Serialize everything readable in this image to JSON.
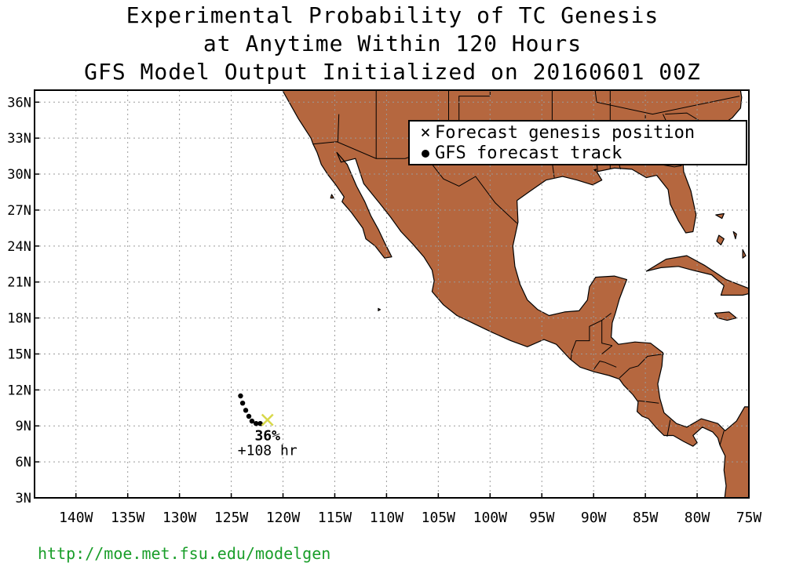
{
  "title": {
    "line1": "Experimental Probability of TC Genesis",
    "line2": "at Anytime Within 120 Hours",
    "line3": "GFS Model Output Initialized on 20160601 00Z"
  },
  "map": {
    "lon_range": [
      -144,
      -75
    ],
    "lat_range": [
      3,
      37
    ],
    "lat_ticks": [
      {
        "value": 3,
        "label": "3N"
      },
      {
        "value": 6,
        "label": "6N"
      },
      {
        "value": 9,
        "label": "9N"
      },
      {
        "value": 12,
        "label": "12N"
      },
      {
        "value": 15,
        "label": "15N"
      },
      {
        "value": 18,
        "label": "18N"
      },
      {
        "value": 21,
        "label": "21N"
      },
      {
        "value": 24,
        "label": "24N"
      },
      {
        "value": 27,
        "label": "27N"
      },
      {
        "value": 30,
        "label": "30N"
      },
      {
        "value": 33,
        "label": "33N"
      },
      {
        "value": 36,
        "label": "36N"
      }
    ],
    "lon_ticks": [
      {
        "value": -140,
        "label": "140W"
      },
      {
        "value": -135,
        "label": "135W"
      },
      {
        "value": -130,
        "label": "130W"
      },
      {
        "value": -125,
        "label": "125W"
      },
      {
        "value": -120,
        "label": "120W"
      },
      {
        "value": -115,
        "label": "115W"
      },
      {
        "value": -110,
        "label": "110W"
      },
      {
        "value": -105,
        "label": "105W"
      },
      {
        "value": -100,
        "label": "100W"
      },
      {
        "value": -95,
        "label": "95W"
      },
      {
        "value": -90,
        "label": "90W"
      },
      {
        "value": -85,
        "label": "85W"
      },
      {
        "value": -80,
        "label": "80W"
      },
      {
        "value": -75,
        "label": "75W"
      }
    ],
    "grid": true,
    "colors": {
      "land": "#b5673f",
      "ocean": "#ffffff",
      "coast": "#000000",
      "genesis_marker": "#d8d84a",
      "track": "#000000",
      "url": "#1a9e2a"
    },
    "track": [
      {
        "lon": -124.1,
        "lat": 11.5
      },
      {
        "lon": -123.9,
        "lat": 10.9
      },
      {
        "lon": -123.6,
        "lat": 10.3
      },
      {
        "lon": -123.3,
        "lat": 9.8
      },
      {
        "lon": -123.0,
        "lat": 9.4
      },
      {
        "lon": -122.6,
        "lat": 9.2
      },
      {
        "lon": -122.2,
        "lat": 9.2
      }
    ],
    "genesis": {
      "lon": -121.5,
      "lat": 9.5,
      "probability_label": "36%",
      "lead_time_label": "+108 hr"
    }
  },
  "legend": {
    "position": "top-right",
    "item1": "Forecast genesis position",
    "item1_symbol": "×",
    "item2": "GFS forecast track"
  },
  "source_url": "http://moe.met.fsu.edu/modelgen"
}
